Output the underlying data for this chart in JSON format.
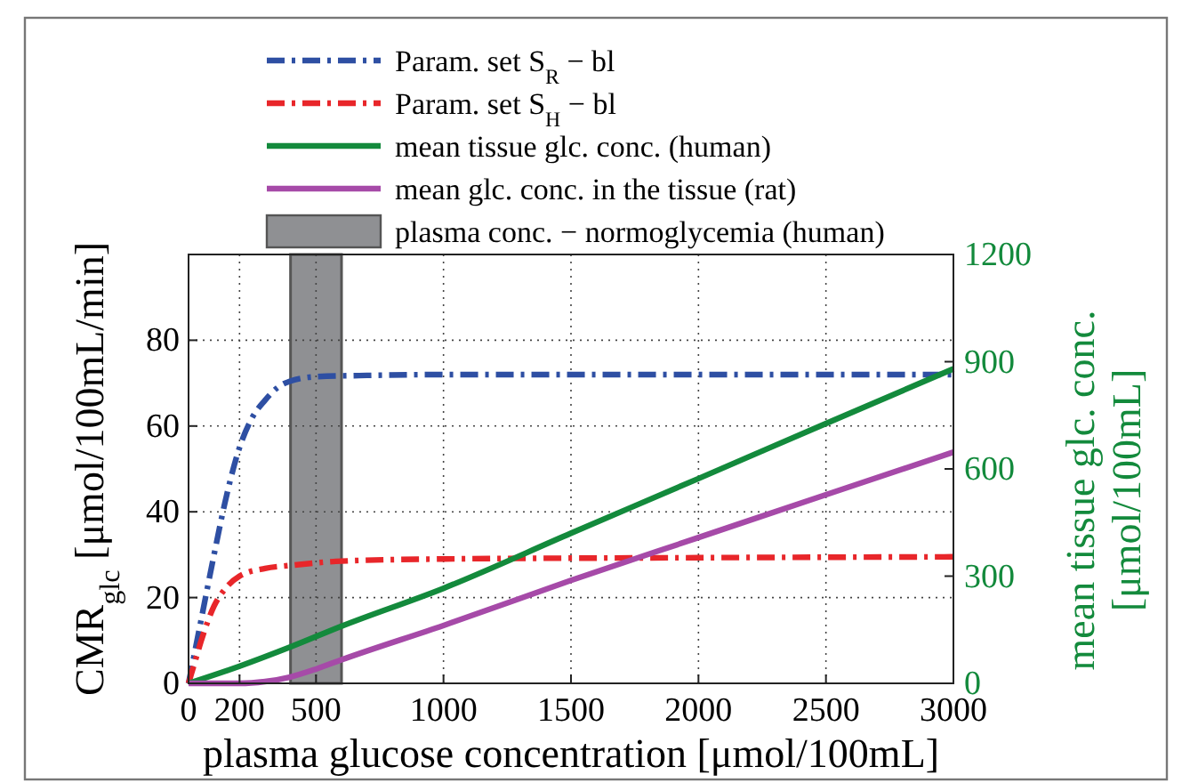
{
  "chart_data": {
    "type": "line",
    "xlabel": "plasma glucose concentration [μmol/100mL]",
    "ylabel": "CMR$_{glc}$ [μmol/100mL/min]",
    "y2label": "mean tissue glc. conc.\n[μmol/100mL]",
    "xlim": [
      0,
      3000
    ],
    "xticks": [
      0,
      200,
      500,
      1000,
      1500,
      2000,
      2500,
      3000
    ],
    "ylim": [
      0,
      100
    ],
    "yticks": [
      0,
      20,
      40,
      60,
      80
    ],
    "y2lim": [
      0,
      1200
    ],
    "y2ticks": [
      0,
      300,
      600,
      900,
      1200
    ],
    "grid": true,
    "legend": "top",
    "bands": [
      {
        "axis": "x",
        "from": 400,
        "to": 600,
        "label": "plasma conc. − normoglycemia (human)",
        "color": "#8f9093"
      }
    ],
    "series": [
      {
        "name": "Param. set S$_{R}$ − bl",
        "color": "#2e4fa3",
        "line_style": "dashdot",
        "x": [
          0,
          50,
          100,
          150,
          200,
          250,
          300,
          350,
          400,
          500,
          700,
          1000,
          2000,
          3000
        ],
        "values": [
          0,
          15,
          30,
          44,
          55,
          62,
          66,
          69,
          70.5,
          71.5,
          71.8,
          72,
          72,
          72
        ]
      },
      {
        "name": "Param. set S$_{H}$ − bl",
        "color": "#e8262a",
        "line_style": "dashdot",
        "x": [
          0,
          25,
          50,
          100,
          150,
          200,
          300,
          400,
          600,
          1000,
          2000,
          3000
        ],
        "values": [
          0,
          5,
          10,
          18,
          22.5,
          25,
          26.8,
          27.5,
          28.5,
          29,
          29.3,
          29.5
        ]
      },
      {
        "name": "mean tissue glc. conc. (human)",
        "color": "#138a3c",
        "line_style": "solid",
        "axis": "y2",
        "x": [
          0,
          200,
          400,
          600,
          1000,
          1500,
          2000,
          2500,
          3000
        ],
        "values": [
          0,
          48,
          102,
          160,
          266,
          420,
          573,
          727,
          880
        ]
      },
      {
        "name": "mean glc. conc. in the tissue (rat)",
        "color": "#a64aa8",
        "line_style": "solid",
        "axis": "y2",
        "x": [
          0,
          200,
          300,
          400,
          500,
          600,
          1000,
          1500,
          2000,
          2500,
          3000
        ],
        "values": [
          0,
          0,
          5,
          18,
          40,
          66,
          162,
          288,
          408,
          528,
          647
        ]
      }
    ]
  }
}
